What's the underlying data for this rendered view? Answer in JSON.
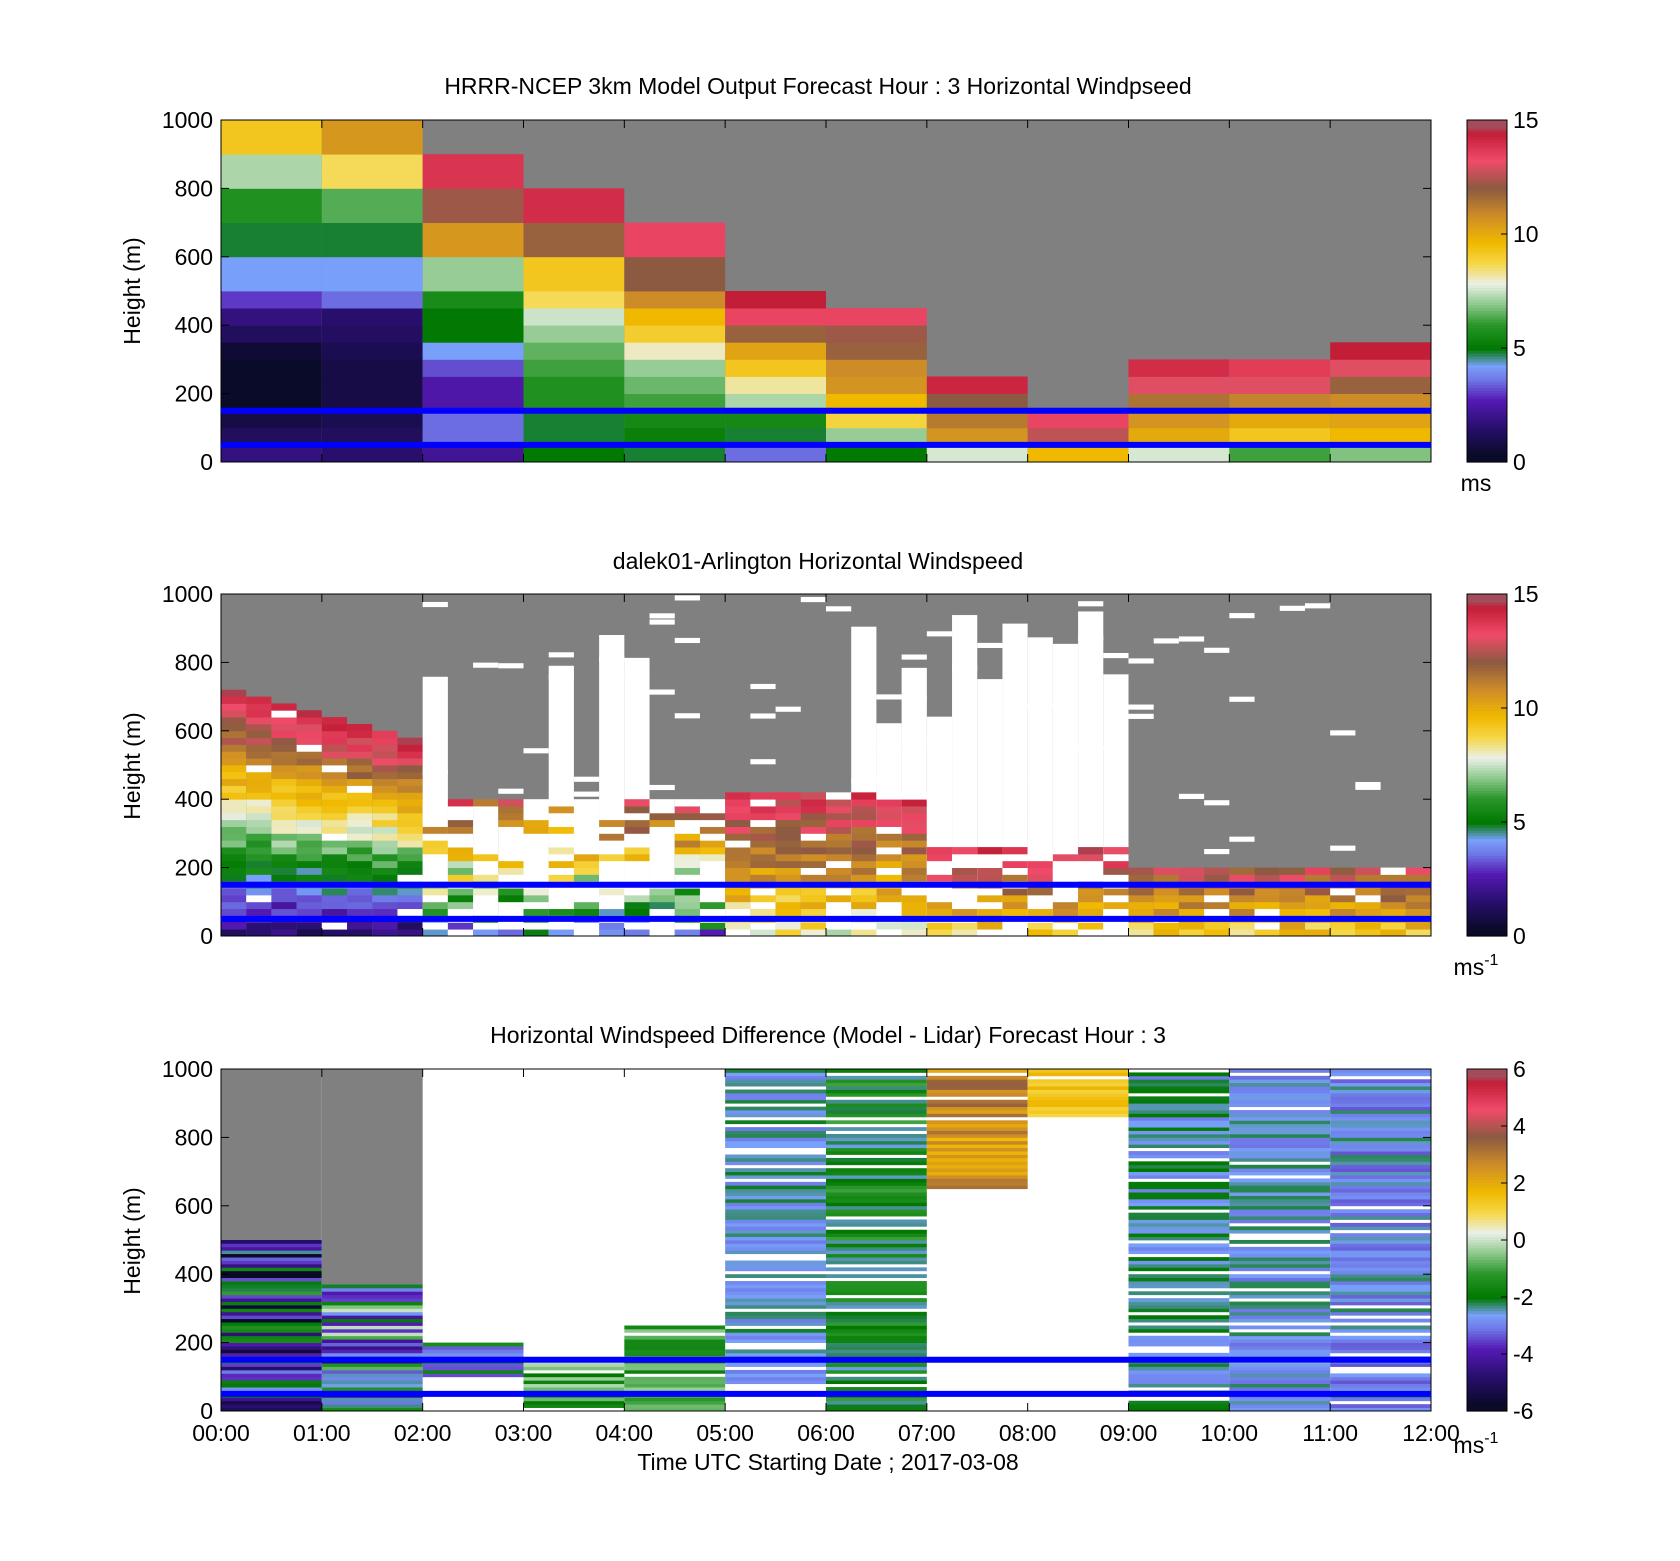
{
  "chart_data": [
    {
      "type": "heatmap",
      "title": "HRRR-NCEP 3km Model Output   Forecast Hour : 3 Horizontal Windpseed",
      "ylabel": "Height (m)",
      "xlabel": "",
      "x_ticks": [
        "",
        "",
        "",
        "",
        "",
        "",
        "",
        "",
        "",
        "",
        "",
        "",
        ""
      ],
      "y_ticks": [
        "0",
        "200",
        "400",
        "600",
        "800",
        "1000"
      ],
      "ylim": [
        0,
        1000
      ],
      "xlim_hours": [
        0,
        12
      ],
      "colorbar": {
        "ticks": [
          "0",
          "5",
          "10",
          "15"
        ],
        "range": [
          0,
          15
        ],
        "unit": "ms",
        "unit_sup": ""
      },
      "reference_lines_m": [
        150,
        50
      ],
      "grid": false
    },
    {
      "type": "heatmap",
      "title": "dalek01-Arlington  Horizontal Windspeed",
      "ylabel": "Height (m)",
      "xlabel": "",
      "x_ticks": [
        "",
        "",
        "",
        "",
        "",
        "",
        "",
        "",
        "",
        "",
        "",
        "",
        ""
      ],
      "y_ticks": [
        "0",
        "200",
        "400",
        "600",
        "800",
        "1000"
      ],
      "ylim": [
        0,
        1000
      ],
      "xlim_hours": [
        0,
        12
      ],
      "colorbar": {
        "ticks": [
          "0",
          "5",
          "10",
          "15"
        ],
        "range": [
          0,
          15
        ],
        "unit": "ms",
        "unit_sup": "-1"
      },
      "reference_lines_m": [
        150,
        50
      ],
      "grid": false
    },
    {
      "type": "heatmap",
      "title": "Horizontal Windspeed Difference (Model - Lidar) Forecast Hour : 3",
      "ylabel": "Height (m)",
      "xlabel": "Time UTC  Starting Date ; 2017-03-08",
      "x_ticks": [
        "00:00",
        "01:00",
        "02:00",
        "03:00",
        "04:00",
        "05:00",
        "06:00",
        "07:00",
        "08:00",
        "09:00",
        "10:00",
        "11:00",
        "12:00"
      ],
      "y_ticks": [
        "0",
        "200",
        "400",
        "600",
        "800",
        "1000"
      ],
      "ylim": [
        0,
        1000
      ],
      "xlim_hours": [
        0,
        12
      ],
      "colorbar": {
        "ticks": [
          "-6",
          "-4",
          "-2",
          "0",
          "2",
          "4",
          "6"
        ],
        "range": [
          -6,
          6
        ],
        "unit": "ms",
        "unit_sup": "-1"
      },
      "reference_lines_m": [
        150,
        50
      ],
      "grid": false
    }
  ],
  "model_columns": [
    [
      [
        0,
        50,
        1.8
      ],
      [
        50,
        100,
        1.2
      ],
      [
        100,
        150,
        0.8
      ],
      [
        150,
        200,
        0.3
      ],
      [
        200,
        250,
        0.2
      ],
      [
        250,
        300,
        0
      ],
      [
        300,
        350,
        0.5
      ],
      [
        350,
        400,
        1.2
      ],
      [
        400,
        450,
        1.8
      ],
      [
        450,
        500,
        3.0
      ],
      [
        500,
        550,
        4.2
      ],
      [
        550,
        600,
        4.2
      ],
      [
        600,
        650,
        4.8
      ],
      [
        650,
        700,
        4.8
      ],
      [
        700,
        750,
        5.8
      ],
      [
        750,
        800,
        5.8
      ],
      [
        800,
        850,
        7.2
      ],
      [
        850,
        900,
        7.2
      ],
      [
        900,
        950,
        9.2
      ],
      [
        950,
        1000,
        9.2
      ]
    ],
    [
      [
        0,
        50,
        1.5
      ],
      [
        50,
        100,
        1.2
      ],
      [
        100,
        150,
        1.0
      ],
      [
        150,
        200,
        0.8
      ],
      [
        200,
        250,
        0.8
      ],
      [
        250,
        300,
        0.8
      ],
      [
        300,
        350,
        1.0
      ],
      [
        350,
        400,
        1.3
      ],
      [
        400,
        450,
        1.5
      ],
      [
        450,
        500,
        3.5
      ],
      [
        500,
        550,
        4.2
      ],
      [
        550,
        600,
        4.2
      ],
      [
        600,
        650,
        4.8
      ],
      [
        650,
        700,
        4.8
      ],
      [
        700,
        750,
        6.4
      ],
      [
        750,
        800,
        6.4
      ],
      [
        800,
        850,
        8.6
      ],
      [
        850,
        900,
        8.6
      ],
      [
        900,
        950,
        10.5
      ],
      [
        950,
        1000,
        10.5
      ]
    ],
    [
      [
        0,
        50,
        2.2
      ],
      [
        50,
        100,
        3.5
      ],
      [
        100,
        150,
        3.5
      ],
      [
        150,
        200,
        2.5
      ],
      [
        200,
        250,
        2.5
      ],
      [
        250,
        300,
        3.2
      ],
      [
        300,
        350,
        4.2
      ],
      [
        350,
        400,
        5.0
      ],
      [
        400,
        450,
        5.0
      ],
      [
        450,
        500,
        5.6
      ],
      [
        500,
        550,
        7.0
      ],
      [
        550,
        600,
        7.0
      ],
      [
        600,
        650,
        10.5
      ],
      [
        650,
        700,
        10.5
      ],
      [
        700,
        750,
        12.2
      ],
      [
        750,
        800,
        12.2
      ],
      [
        800,
        850,
        13.8
      ],
      [
        850,
        900,
        13.8
      ],
      [
        900,
        1000,
        null
      ]
    ],
    [
      [
        0,
        50,
        5.0
      ],
      [
        50,
        100,
        4.8
      ],
      [
        100,
        150,
        4.8
      ],
      [
        150,
        200,
        5.8
      ],
      [
        200,
        250,
        5.8
      ],
      [
        250,
        300,
        6.2
      ],
      [
        300,
        350,
        6.5
      ],
      [
        350,
        400,
        7.0
      ],
      [
        400,
        450,
        7.5
      ],
      [
        450,
        500,
        8.6
      ],
      [
        500,
        550,
        9.2
      ],
      [
        550,
        600,
        9.2
      ],
      [
        600,
        650,
        11.8
      ],
      [
        650,
        700,
        11.8
      ],
      [
        700,
        750,
        14.0
      ],
      [
        750,
        800,
        14.0
      ],
      [
        800,
        1000,
        null
      ]
    ],
    [
      [
        0,
        50,
        4.8
      ],
      [
        50,
        100,
        5.2
      ],
      [
        100,
        150,
        5.5
      ],
      [
        150,
        200,
        6.2
      ],
      [
        200,
        250,
        6.6
      ],
      [
        250,
        300,
        7.0
      ],
      [
        300,
        350,
        8.0
      ],
      [
        350,
        400,
        9.0
      ],
      [
        400,
        450,
        9.6
      ],
      [
        450,
        500,
        10.8
      ],
      [
        500,
        550,
        12.0
      ],
      [
        550,
        600,
        12.0
      ],
      [
        600,
        650,
        13.4
      ],
      [
        650,
        700,
        13.4
      ],
      [
        700,
        1000,
        null
      ]
    ],
    [
      [
        0,
        50,
        3.5
      ],
      [
        50,
        100,
        4.8
      ],
      [
        100,
        150,
        5.5
      ],
      [
        150,
        200,
        7.2
      ],
      [
        200,
        250,
        8.2
      ],
      [
        250,
        300,
        9.2
      ],
      [
        300,
        350,
        10.2
      ],
      [
        350,
        400,
        11.8
      ],
      [
        400,
        450,
        13.4
      ],
      [
        450,
        500,
        14.4
      ],
      [
        500,
        1000,
        null
      ]
    ],
    [
      [
        0,
        50,
        5.0
      ],
      [
        50,
        100,
        7.0
      ],
      [
        100,
        150,
        8.8
      ],
      [
        150,
        200,
        9.6
      ],
      [
        200,
        250,
        10.6
      ],
      [
        250,
        300,
        10.8
      ],
      [
        300,
        350,
        11.8
      ],
      [
        350,
        400,
        12.2
      ],
      [
        400,
        450,
        13.4
      ],
      [
        450,
        1000,
        null
      ]
    ],
    [
      [
        0,
        50,
        7.6
      ],
      [
        50,
        100,
        10.6
      ],
      [
        100,
        150,
        11.2
      ],
      [
        150,
        200,
        12.0
      ],
      [
        200,
        250,
        14.2
      ],
      [
        250,
        1000,
        null
      ]
    ],
    [
      [
        0,
        50,
        9.6
      ],
      [
        50,
        100,
        12.6
      ],
      [
        100,
        150,
        13.4
      ],
      [
        150,
        1000,
        null
      ]
    ],
    [
      [
        0,
        50,
        7.6
      ],
      [
        50,
        100,
        10.0
      ],
      [
        100,
        150,
        10.6
      ],
      [
        150,
        200,
        11.4
      ],
      [
        200,
        250,
        13.0
      ],
      [
        250,
        300,
        14.0
      ],
      [
        300,
        1000,
        null
      ]
    ],
    [
      [
        0,
        50,
        6.2
      ],
      [
        50,
        100,
        9.2
      ],
      [
        100,
        150,
        10.0
      ],
      [
        150,
        200,
        11.0
      ],
      [
        200,
        250,
        13.0
      ],
      [
        250,
        300,
        13.6
      ],
      [
        300,
        1000,
        null
      ]
    ],
    [
      [
        0,
        50,
        6.8
      ],
      [
        50,
        100,
        9.6
      ],
      [
        100,
        150,
        10.2
      ],
      [
        150,
        200,
        10.8
      ],
      [
        200,
        250,
        11.8
      ],
      [
        250,
        300,
        13.0
      ],
      [
        300,
        350,
        14.4
      ],
      [
        350,
        1000,
        null
      ]
    ]
  ]
}
